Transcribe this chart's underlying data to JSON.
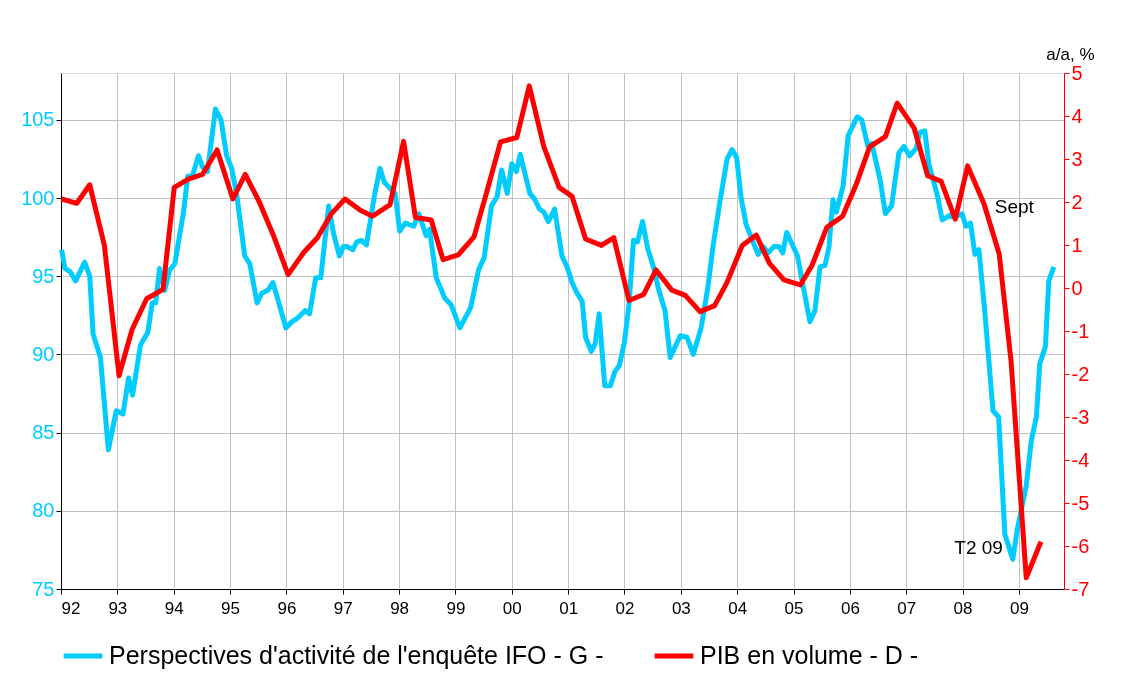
{
  "chart_data": {
    "type": "line",
    "y2label": "a/a, %",
    "xlim": [
      1992,
      2009.8
    ],
    "xticks": [
      {
        "value": 1992,
        "label": "92"
      },
      {
        "value": 1993,
        "label": "93"
      },
      {
        "value": 1994,
        "label": "94"
      },
      {
        "value": 1995,
        "label": "95"
      },
      {
        "value": 1996,
        "label": "96"
      },
      {
        "value": 1997,
        "label": "97"
      },
      {
        "value": 1998,
        "label": "98"
      },
      {
        "value": 1999,
        "label": "99"
      },
      {
        "value": 2000,
        "label": "00"
      },
      {
        "value": 2001,
        "label": "01"
      },
      {
        "value": 2002,
        "label": "02"
      },
      {
        "value": 2003,
        "label": "03"
      },
      {
        "value": 2004,
        "label": "04"
      },
      {
        "value": 2005,
        "label": "05"
      },
      {
        "value": 2006,
        "label": "06"
      },
      {
        "value": 2007,
        "label": "07"
      },
      {
        "value": 2008,
        "label": "08"
      },
      {
        "value": 2009,
        "label": "09"
      }
    ],
    "ylim": [
      75,
      108
    ],
    "yticks": [
      75,
      80,
      85,
      90,
      95,
      100,
      105
    ],
    "y2lim": [
      -7,
      5
    ],
    "y2ticks": [
      -7,
      -6,
      -5,
      -4,
      -3,
      -2,
      -1,
      0,
      1,
      2,
      3,
      4,
      5
    ],
    "grid": true,
    "legend": "bottom",
    "line_style": "solid",
    "marker": "none",
    "annotations": [
      "Sept",
      "T2 09"
    ],
    "series": [
      {
        "name": "Perspectives d'activité de l'enquête IFO - G -",
        "color": "#00ccff",
        "x": [
          1992.01,
          1992.07,
          1992.16,
          1992.26,
          1992.42,
          1992.51,
          1992.57,
          1992.7,
          1992.84,
          1992.98,
          1993.1,
          1993.2,
          1993.27,
          1993.41,
          1993.54,
          1993.62,
          1993.68,
          1993.75,
          1993.84,
          1993.93,
          1994.02,
          1994.17,
          1994.25,
          1994.33,
          1994.44,
          1994.51,
          1994.6,
          1994.74,
          1994.84,
          1994.94,
          1995.03,
          1995.12,
          1995.26,
          1995.35,
          1995.48,
          1995.56,
          1995.67,
          1995.76,
          1995.85,
          1995.99,
          1996.1,
          1996.19,
          1996.33,
          1996.41,
          1996.52,
          1996.61,
          1996.75,
          1996.84,
          1996.94,
          1997.01,
          1997.08,
          1997.18,
          1997.25,
          1997.33,
          1997.42,
          1997.56,
          1997.66,
          1997.74,
          1997.93,
          1998.01,
          1998.11,
          1998.26,
          1998.35,
          1998.48,
          1998.54,
          1998.66,
          1998.81,
          1998.92,
          1999.08,
          1999.27,
          1999.41,
          1999.51,
          1999.64,
          1999.74,
          1999.82,
          1999.92,
          2000.0,
          2000.08,
          2000.15,
          2000.32,
          2000.41,
          2000.49,
          2000.57,
          2000.65,
          2000.76,
          2000.89,
          2000.98,
          2001.07,
          2001.16,
          2001.25,
          2001.31,
          2001.41,
          2001.48,
          2001.55,
          2001.65,
          2001.75,
          2001.83,
          2001.91,
          2002.0,
          2002.08,
          2002.16,
          2002.23,
          2002.32,
          2002.41,
          2002.53,
          2002.61,
          2002.72,
          2002.81,
          2002.9,
          2002.99,
          2003.11,
          2003.22,
          2003.36,
          2003.48,
          2003.57,
          2003.69,
          2003.82,
          2003.91,
          2003.99,
          2004.07,
          2004.16,
          2004.37,
          2004.46,
          2004.55,
          2004.65,
          2004.74,
          2004.81,
          2004.88,
          2005.07,
          2005.29,
          2005.38,
          2005.47,
          2005.56,
          2005.63,
          2005.7,
          2005.76,
          2005.88,
          2005.97,
          2006.13,
          2006.21,
          2006.32,
          2006.39,
          2006.54,
          2006.63,
          2006.74,
          2006.87,
          2006.96,
          2007.06,
          2007.18,
          2007.24,
          2007.33,
          2007.4,
          2007.55,
          2007.64,
          2007.77,
          2007.85,
          2007.99,
          2008.06,
          2008.14,
          2008.22,
          2008.29,
          2008.4,
          2008.54,
          2008.64,
          2008.75,
          2008.89,
          2008.97,
          2009.13,
          2009.22,
          2009.31,
          2009.37,
          2009.47,
          2009.53,
          2009.62
        ],
        "values": [
          96.7,
          95.5,
          95.3,
          94.7,
          95.9,
          95.0,
          91.3,
          89.8,
          83.9,
          86.4,
          86.2,
          88.5,
          87.4,
          90.6,
          91.4,
          93.3,
          93.3,
          95.5,
          94.1,
          95.4,
          95.8,
          99.0,
          101.4,
          101.4,
          102.7,
          102.0,
          101.7,
          105.7,
          105.0,
          102.7,
          101.9,
          100.2,
          96.3,
          95.8,
          93.3,
          93.9,
          94.1,
          94.6,
          93.5,
          91.7,
          92.1,
          92.3,
          92.8,
          92.6,
          94.9,
          94.9,
          99.5,
          97.7,
          96.3,
          96.9,
          96.9,
          96.7,
          97.2,
          97.3,
          97.0,
          100.1,
          101.9,
          101.0,
          100.3,
          97.9,
          98.4,
          98.2,
          99.0,
          97.6,
          98.0,
          94.9,
          93.6,
          93.2,
          91.7,
          93.0,
          95.4,
          96.2,
          99.5,
          100.1,
          101.8,
          100.3,
          102.2,
          101.7,
          102.8,
          100.3,
          99.9,
          99.3,
          99.1,
          98.5,
          99.3,
          96.3,
          95.6,
          94.6,
          93.9,
          93.4,
          91.1,
          90.2,
          90.7,
          92.6,
          88.0,
          88.0,
          88.9,
          89.3,
          90.8,
          93.2,
          97.3,
          97.2,
          98.5,
          96.8,
          95.4,
          94.1,
          92.8,
          89.8,
          90.5,
          91.2,
          91.1,
          90.0,
          91.7,
          94.3,
          96.9,
          99.7,
          102.5,
          103.1,
          102.6,
          100.0,
          98.3,
          96.4,
          96.9,
          96.5,
          96.9,
          96.9,
          96.5,
          97.8,
          96.3,
          92.1,
          92.8,
          95.6,
          95.7,
          96.9,
          99.9,
          99.1,
          100.8,
          104.0,
          105.2,
          105.0,
          103.3,
          103.5,
          101.1,
          99.0,
          99.5,
          102.9,
          103.3,
          102.7,
          103.2,
          104.2,
          104.3,
          102.2,
          100.2,
          98.6,
          98.9,
          98.8,
          99.0,
          98.2,
          98.4,
          96.4,
          96.7,
          92.5,
          86.4,
          86.0,
          78.5,
          76.9,
          78.8,
          81.6,
          84.5,
          86.0,
          89.4,
          90.5,
          94.7,
          95.6
        ]
      },
      {
        "name": "PIB en volume - D -",
        "color": "#ff0000",
        "axis": "y2",
        "x": [
          1992.01,
          1992.28,
          1992.51,
          1992.77,
          1993.03,
          1993.26,
          1993.52,
          1993.81,
          1994.01,
          1994.26,
          1994.51,
          1994.77,
          1995.05,
          1995.27,
          1995.52,
          1995.78,
          1996.03,
          1996.31,
          1996.55,
          1996.8,
          1997.04,
          1997.32,
          1997.53,
          1997.84,
          1998.08,
          1998.29,
          1998.57,
          1998.78,
          1999.05,
          1999.33,
          1999.54,
          1999.8,
          2000.09,
          2000.31,
          2000.57,
          2000.84,
          2001.07,
          2001.31,
          2001.59,
          2001.81,
          2002.08,
          2002.34,
          2002.56,
          2002.84,
          2003.08,
          2003.34,
          2003.6,
          2003.82,
          2004.09,
          2004.34,
          2004.57,
          2004.83,
          2005.12,
          2005.33,
          2005.59,
          2005.87,
          2006.11,
          2006.35,
          2006.63,
          2006.84,
          2007.14,
          2007.38,
          2007.62,
          2007.87,
          2008.09,
          2008.38,
          2008.65,
          2008.86,
          2009.13,
          2009.39
        ],
        "values": [
          2.07,
          1.97,
          2.4,
          0.99,
          -2.04,
          -0.97,
          -0.25,
          -0.03,
          2.34,
          2.53,
          2.64,
          3.21,
          2.07,
          2.64,
          2.0,
          1.19,
          0.31,
          0.83,
          1.17,
          1.73,
          2.07,
          1.8,
          1.67,
          1.94,
          3.41,
          1.64,
          1.58,
          0.66,
          0.77,
          1.19,
          2.16,
          3.4,
          3.5,
          4.7,
          3.28,
          2.34,
          2.13,
          1.14,
          0.99,
          1.17,
          -0.29,
          -0.15,
          0.42,
          -0.05,
          -0.17,
          -0.55,
          -0.41,
          0.13,
          0.99,
          1.23,
          0.58,
          0.19,
          0.07,
          0.53,
          1.41,
          1.67,
          2.4,
          3.28,
          3.52,
          4.3,
          3.72,
          2.61,
          2.48,
          1.6,
          2.84,
          1.96,
          0.79,
          -1.69,
          -6.74,
          -5.9
        ]
      }
    ]
  }
}
